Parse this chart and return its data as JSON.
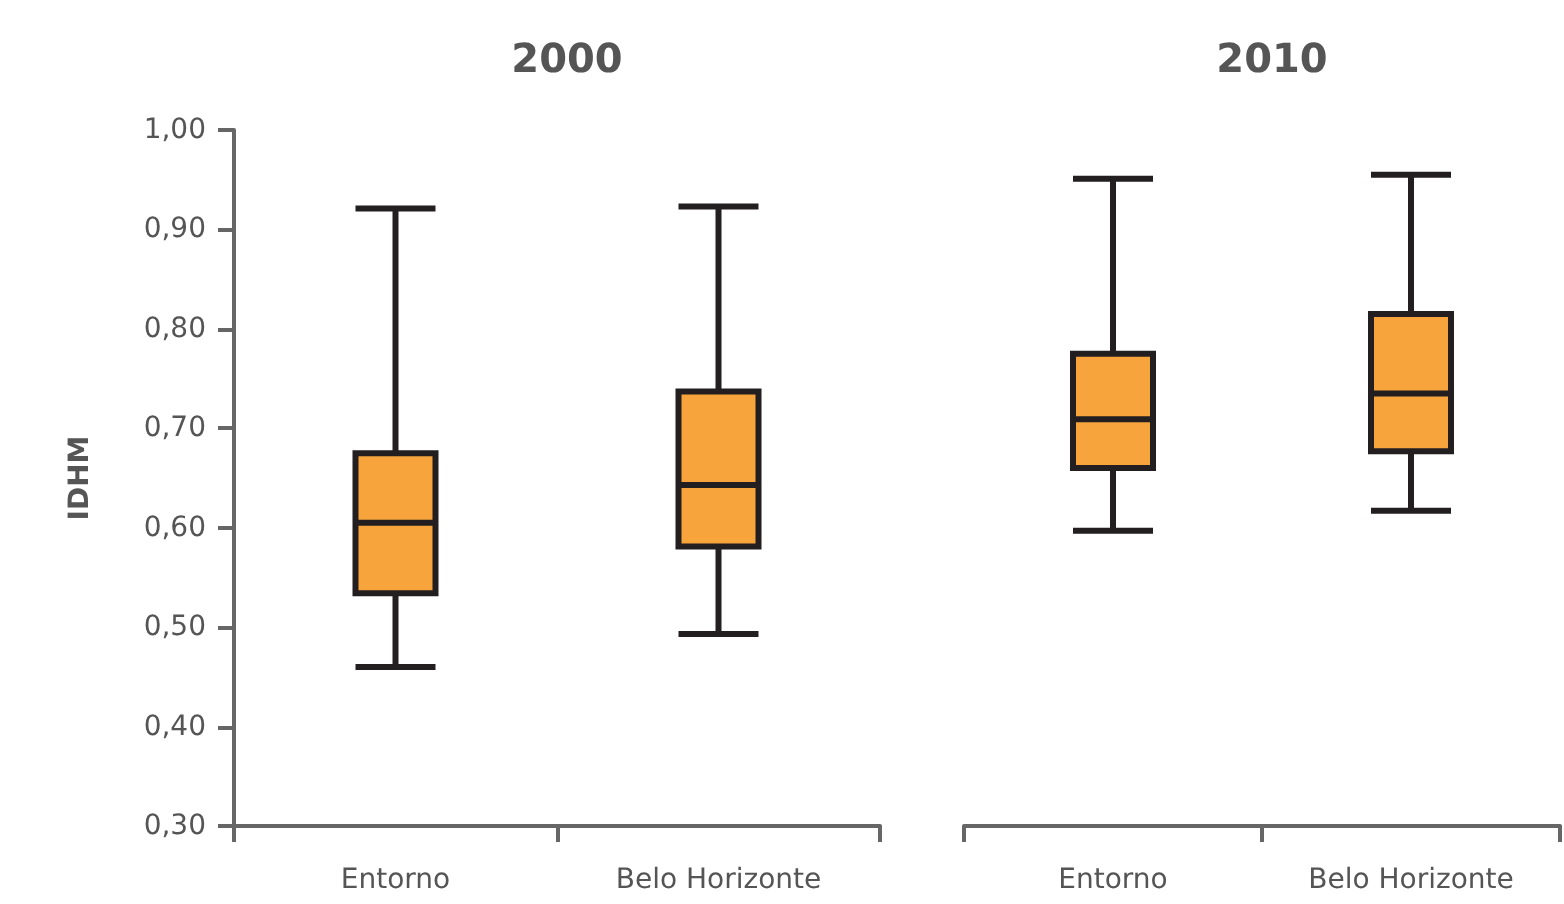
{
  "chart_data": [
    {
      "type": "box",
      "title": "2000",
      "ylabel": "IDHM",
      "categories": [
        "Entorno",
        "Belo Horizonte"
      ],
      "ylim": [
        0.3,
        1.0
      ],
      "yticks": [
        {
          "value": 0.3,
          "label": "0,30"
        },
        {
          "value": 0.4,
          "label": "0,40"
        },
        {
          "value": 0.5,
          "label": "0,50"
        },
        {
          "value": 0.6,
          "label": "0,60"
        },
        {
          "value": 0.7,
          "label": "0,70"
        },
        {
          "value": 0.8,
          "label": "0,80"
        },
        {
          "value": 0.9,
          "label": "0,90"
        },
        {
          "value": 1.0,
          "label": "1,00"
        }
      ],
      "series": [
        {
          "color": "#f7a43d",
          "boxes": [
            {
              "low": 0.46,
              "q1": 0.534,
              "median": 0.605,
              "q3": 0.675,
              "high": 0.921
            },
            {
              "low": 0.493,
              "q1": 0.581,
              "median": 0.643,
              "q3": 0.737,
              "high": 0.923
            }
          ]
        }
      ]
    },
    {
      "type": "box",
      "title": "2010",
      "categories": [
        "Entorno",
        "Belo Horizonte"
      ],
      "ylim": [
        0.3,
        1.0
      ],
      "tick_labels": "x",
      "series": [
        {
          "color": "#f7a43d",
          "boxes": [
            {
              "low": 0.597,
              "q1": 0.66,
              "median": 0.709,
              "q3": 0.775,
              "high": 0.951
            },
            {
              "low": 0.617,
              "q1": 0.677,
              "median": 0.735,
              "q3": 0.815,
              "high": 0.955
            }
          ]
        }
      ]
    }
  ]
}
